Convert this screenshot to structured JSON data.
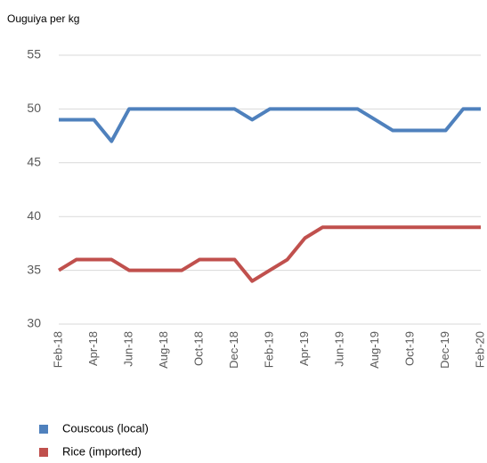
{
  "chart_data": {
    "type": "line",
    "y_axis_label": "Ouguiya per kg",
    "categories": [
      "Feb-18",
      null,
      "Apr-18",
      null,
      "Jun-18",
      null,
      "Aug-18",
      null,
      "Oct-18",
      null,
      "Dec-18",
      null,
      "Feb-19",
      null,
      "Apr-19",
      null,
      "Jun-19",
      null,
      "Aug-19",
      null,
      "Oct-19",
      null,
      "Dec-19",
      null,
      "Feb-20"
    ],
    "series": [
      {
        "name": "Couscous (local)",
        "color": "#4f81bd",
        "values": [
          49,
          49,
          49,
          47,
          50,
          50,
          50,
          50,
          50,
          50,
          50,
          49,
          50,
          50,
          50,
          50,
          50,
          50,
          49,
          48,
          48,
          48,
          48,
          50,
          50
        ]
      },
      {
        "name": "Rice (imported)",
        "color": "#c0504d",
        "values": [
          35,
          36,
          36,
          36,
          35,
          35,
          35,
          35,
          36,
          36,
          36,
          34,
          35,
          36,
          38,
          39,
          39,
          39,
          39,
          39,
          39,
          39,
          39,
          39,
          39
        ]
      }
    ],
    "ylim": [
      30,
      55
    ],
    "yticks": [
      30,
      35,
      40,
      45,
      50,
      55
    ],
    "grid": true,
    "legend": "bottom"
  }
}
